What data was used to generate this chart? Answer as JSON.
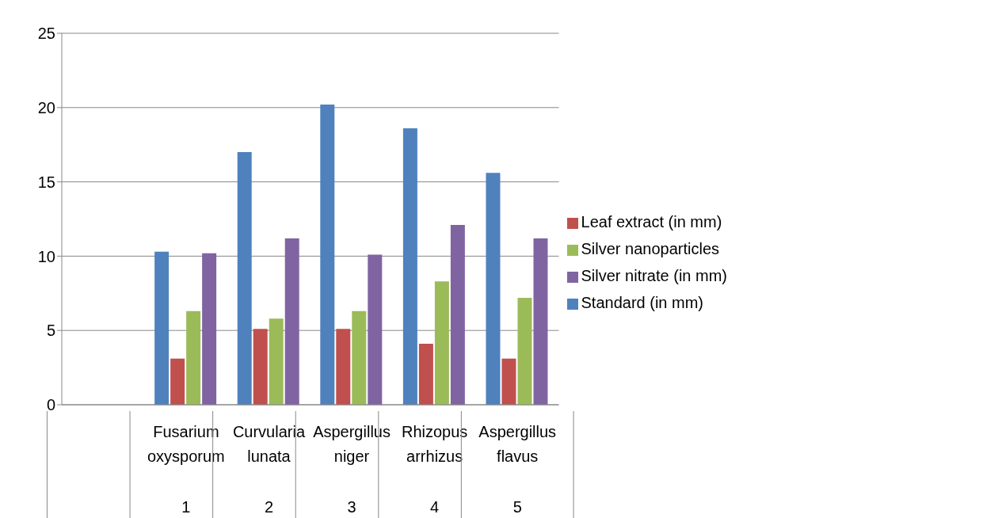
{
  "chart_data": {
    "type": "bar",
    "categories": [
      null,
      "Fusarium oxysporum\n1",
      "Curvularia lunata\n2",
      "Aspergillus niger\n3",
      "Rhizopus arrhizus\n4",
      "Aspergillus flavus\n5"
    ],
    "series": [
      {
        "name": "Standard (in mm)",
        "color": "#4f81bd",
        "values": [
          null,
          10.3,
          17.0,
          20.2,
          18.6,
          15.6
        ]
      },
      {
        "name": "Leaf extract    (in mm)",
        "color": "#c0504d",
        "values": [
          null,
          3.1,
          5.1,
          5.1,
          4.1,
          3.1
        ]
      },
      {
        "name": "Silver nanoparticles",
        "color": "#9bbb59",
        "values": [
          null,
          6.3,
          5.8,
          6.3,
          8.3,
          7.2
        ]
      },
      {
        "name": "Silver nitrate (in mm)",
        "color": "#8064a2",
        "values": [
          null,
          10.2,
          11.2,
          10.1,
          12.1,
          11.2
        ]
      }
    ],
    "ylim": [
      0,
      25
    ],
    "yticks": [
      0,
      5,
      10,
      15,
      20,
      25
    ],
    "grid": "y",
    "legend": "right"
  }
}
